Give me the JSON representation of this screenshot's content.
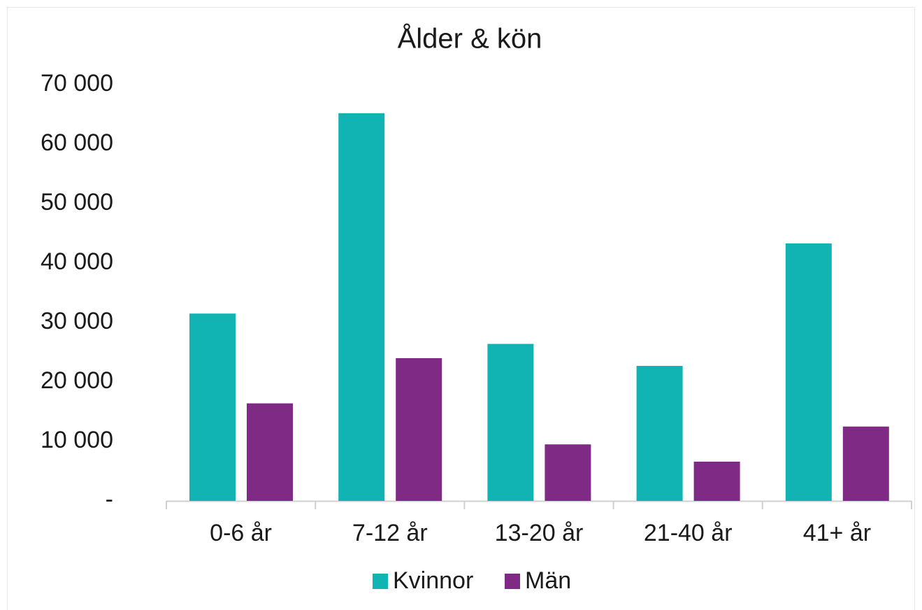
{
  "chart_data": {
    "type": "bar",
    "title": "Ålder & kön",
    "categories": [
      "0-6 år",
      "7-12 år",
      "13-20 år",
      "21-40 år",
      "41+ år"
    ],
    "series": [
      {
        "name": "Kvinnor",
        "color": "#12b3b3",
        "values": [
          31500,
          65200,
          26400,
          22700,
          43300
        ]
      },
      {
        "name": "Män",
        "color": "#7f2b86",
        "values": [
          16400,
          24000,
          9500,
          6600,
          12500
        ]
      }
    ],
    "ylim": [
      0,
      70000
    ],
    "yticks": [
      {
        "value": 0,
        "label": "-"
      },
      {
        "value": 10000,
        "label": "10 000"
      },
      {
        "value": 20000,
        "label": "20 000"
      },
      {
        "value": 30000,
        "label": "30 000"
      },
      {
        "value": 40000,
        "label": "40 000"
      },
      {
        "value": 50000,
        "label": "50 000"
      },
      {
        "value": 60000,
        "label": "60 000"
      },
      {
        "value": 70000,
        "label": "70 000"
      }
    ],
    "grid": false,
    "legend": "bottom"
  }
}
